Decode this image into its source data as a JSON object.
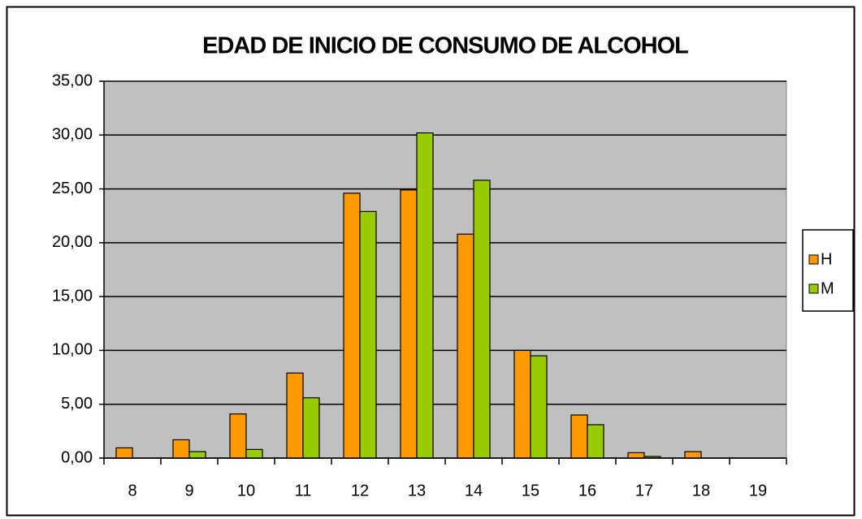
{
  "chart_data": {
    "type": "bar",
    "title": "EDAD DE INICIO DE CONSUMO DE ALCOHOL",
    "categories": [
      "8",
      "9",
      "10",
      "11",
      "12",
      "13",
      "14",
      "15",
      "16",
      "17",
      "18",
      "19"
    ],
    "series": [
      {
        "name": "H",
        "color": "#ff9900",
        "values": [
          0.95,
          1.7,
          4.1,
          7.9,
          24.6,
          24.9,
          20.8,
          10.0,
          4.0,
          0.5,
          0.6,
          0
        ]
      },
      {
        "name": "M",
        "color": "#99cc00",
        "values": [
          0,
          0.6,
          0.8,
          5.6,
          22.9,
          30.2,
          25.8,
          9.5,
          3.1,
          0.15,
          0,
          0
        ]
      }
    ],
    "ylim": [
      0,
      35
    ],
    "yticks": [
      {
        "value": 0,
        "label": "0,00"
      },
      {
        "value": 5,
        "label": "5,00"
      },
      {
        "value": 10,
        "label": "10,00"
      },
      {
        "value": 15,
        "label": "15,00"
      },
      {
        "value": 20,
        "label": "20,00"
      },
      {
        "value": 25,
        "label": "25,00"
      },
      {
        "value": 30,
        "label": "30,00"
      },
      {
        "value": 35,
        "label": "35,00"
      }
    ],
    "grid": true,
    "plot_background": "#c0c0c0",
    "legend": "right"
  }
}
